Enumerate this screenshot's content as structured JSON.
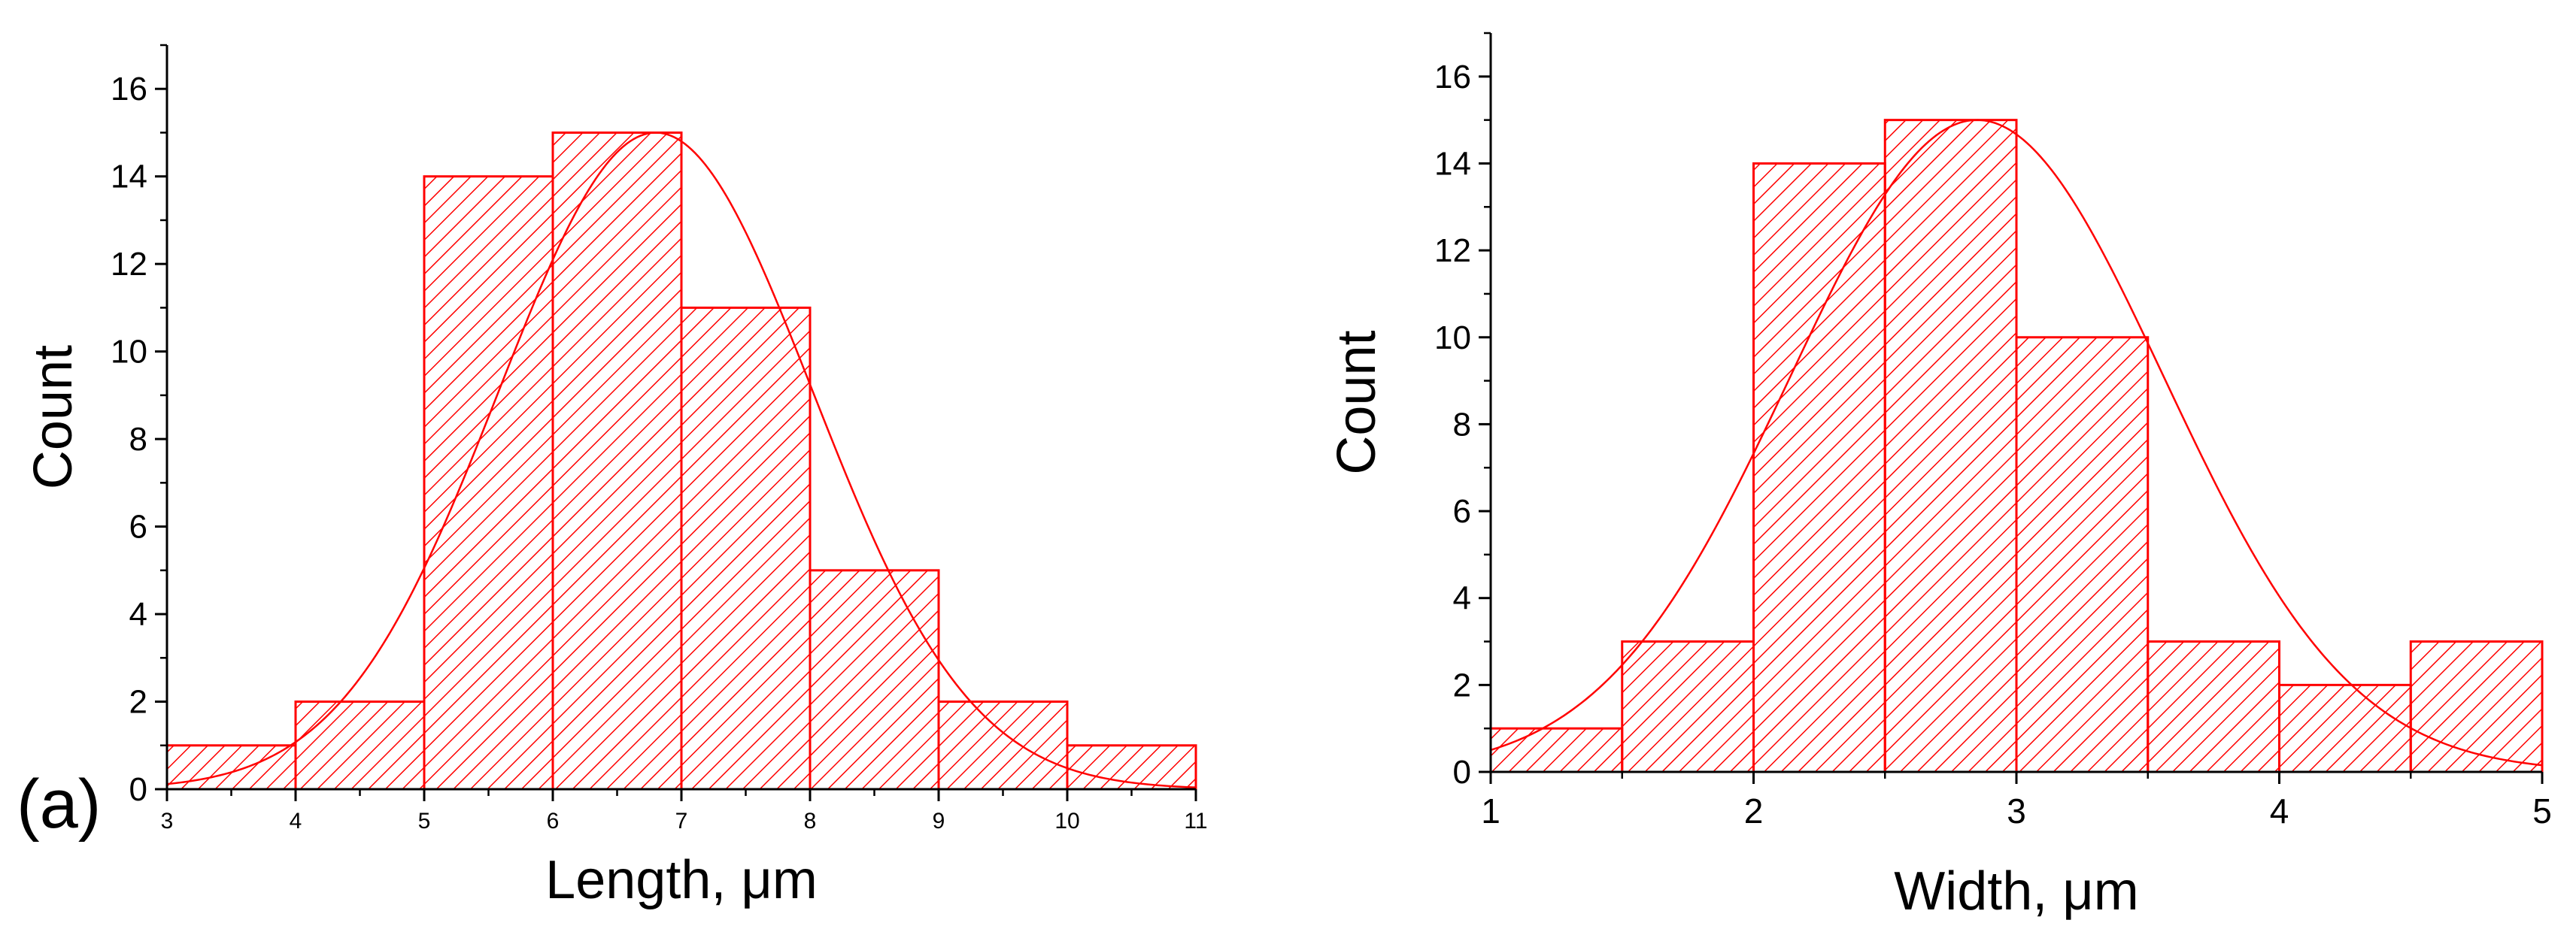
{
  "panel_label": "(a)",
  "colors": {
    "bar": "#ff0000",
    "fit": "#ff0000",
    "axis": "#000000"
  },
  "chart_data": [
    {
      "type": "bar",
      "subtype": "histogram-with-gaussian-fit",
      "xlabel": "Length, μm",
      "ylabel": "Count",
      "xlim": [
        3,
        11
      ],
      "ylim": [
        0,
        17
      ],
      "xticks": [
        3,
        4,
        5,
        6,
        7,
        8,
        9,
        10,
        11
      ],
      "xtick_labels": [
        "3",
        "4",
        "5",
        "6",
        "7",
        "8",
        "9",
        "10",
        "11"
      ],
      "yticks": [
        0,
        2,
        4,
        6,
        8,
        10,
        12,
        14,
        16
      ],
      "ytick_labels": [
        "0",
        "2",
        "4",
        "6",
        "8",
        "10",
        "12",
        "14",
        "16"
      ],
      "bin_edges": [
        3,
        4,
        5,
        6,
        7,
        8,
        9,
        10,
        11
      ],
      "values": [
        1,
        2,
        14,
        15,
        11,
        5,
        2,
        1
      ],
      "fit": {
        "type": "gaussian",
        "center": 6.8,
        "sigma": 1.22,
        "amplitude": 15
      },
      "grid": false,
      "bar_fill": "hatched"
    },
    {
      "type": "bar",
      "subtype": "histogram-with-gaussian-fit",
      "xlabel": "Width, μm",
      "ylabel": "Count",
      "xlim": [
        1,
        5
      ],
      "ylim": [
        0,
        17
      ],
      "xticks": [
        1,
        2,
        3,
        4,
        5
      ],
      "xtick_labels": [
        "1",
        "2",
        "3",
        "4",
        "5"
      ],
      "yticks": [
        0,
        2,
        4,
        6,
        8,
        10,
        12,
        14,
        16
      ],
      "ytick_labels": [
        "0",
        "2",
        "4",
        "6",
        "8",
        "10",
        "12",
        "14",
        "16"
      ],
      "bin_edges": [
        1,
        1.5,
        2,
        2.5,
        3,
        3.5,
        4,
        4.5,
        5
      ],
      "values": [
        1,
        3,
        14,
        15,
        10,
        3,
        2,
        3
      ],
      "fit": {
        "type": "gaussian",
        "center": 2.85,
        "sigma": 0.71,
        "amplitude": 15
      },
      "grid": false,
      "bar_fill": "hatched"
    }
  ]
}
